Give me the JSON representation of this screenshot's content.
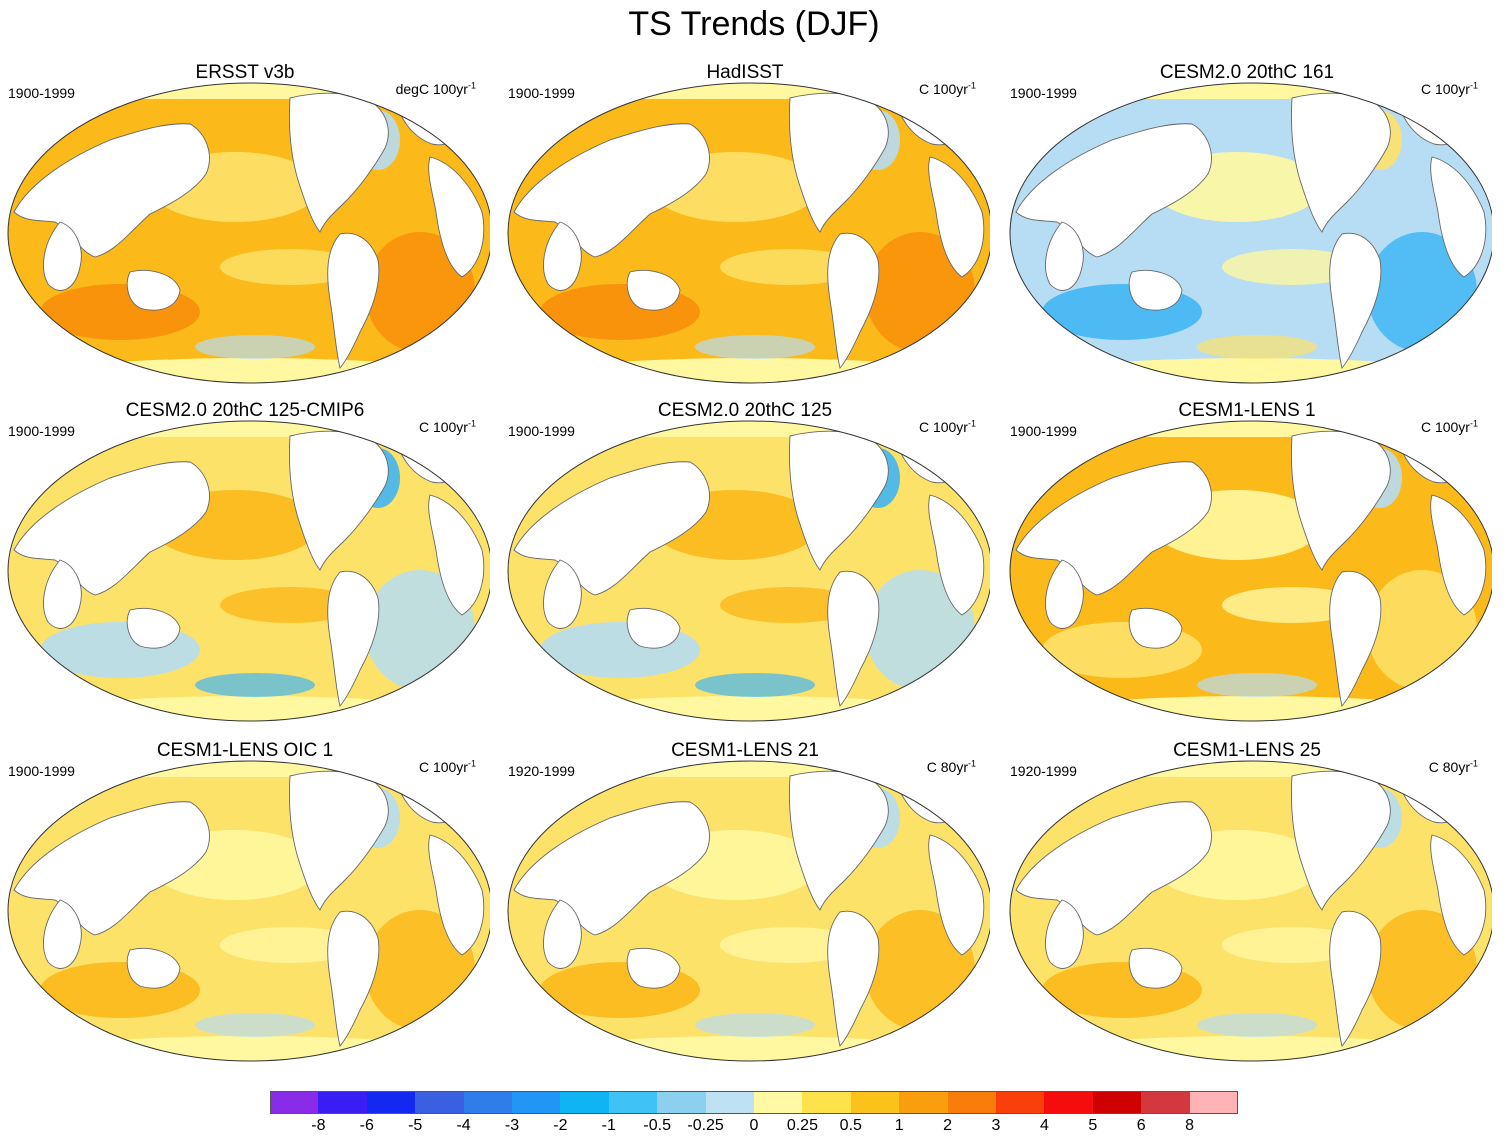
{
  "title": "TS Trends (DJF)",
  "colors": {
    "ocean_warm": "#fbb91a",
    "ocean_warmer": "#f88f0b",
    "ocean_mild": "#fde26a",
    "ocean_light": "#fff8a0",
    "ocean_cool": "#b6ddf3",
    "ocean_cold": "#41b6f3",
    "land": "#ffffff",
    "coast": "#666666"
  },
  "panels": [
    {
      "title": "ERSST v3b",
      "period": "1900-1999",
      "units_base": "degC 100yr",
      "units_exp": "-1",
      "style": "warm"
    },
    {
      "title": "HadISST",
      "period": "1900-1999",
      "units_base": "C 100yr",
      "units_exp": "-1",
      "style": "warm"
    },
    {
      "title": "CESM2.0 20thC 161",
      "period": "1900-1999",
      "units_base": "C 100yr",
      "units_exp": "-1",
      "style": "cool"
    },
    {
      "title": "CESM2.0 20thC 125-CMIP6",
      "period": "1900-1999",
      "units_base": "C 100yr",
      "units_exp": "-1",
      "style": "mixed"
    },
    {
      "title": "CESM2.0 20thC 125",
      "period": "1900-1999",
      "units_base": "C 100yr",
      "units_exp": "-1",
      "style": "mixed"
    },
    {
      "title": "CESM1-LENS 1",
      "period": "1900-1999",
      "units_base": "C 100yr",
      "units_exp": "-1",
      "style": "moderate"
    },
    {
      "title": "CESM1-LENS OIC 1",
      "period": "1900-1999",
      "units_base": "C 100yr",
      "units_exp": "-1",
      "style": "mild"
    },
    {
      "title": "CESM1-LENS 21",
      "period": "1920-1999",
      "units_base": "C 80yr",
      "units_exp": "-1",
      "style": "mild"
    },
    {
      "title": "CESM1-LENS 25",
      "period": "1920-1999",
      "units_base": "C 80yr",
      "units_exp": "-1",
      "style": "mild"
    }
  ],
  "colorbar": {
    "colors": [
      "#8a2be8",
      "#3a1df2",
      "#1328f0",
      "#3a5fe0",
      "#2f7deb",
      "#2196f6",
      "#0fb4f5",
      "#3fc2f5",
      "#8ccfee",
      "#bee2f4",
      "#fff9a6",
      "#fde24a",
      "#fcc21c",
      "#f99f0e",
      "#f87d0a",
      "#fa3f0b",
      "#f50d0d",
      "#cf0000",
      "#d2383e",
      "#ffb3b4"
    ],
    "labels": [
      "-8",
      "-6",
      "-5",
      "-4",
      "-3",
      "-2",
      "-1",
      "-0.5",
      "-0.25",
      "0",
      "0.25",
      "0.5",
      "1",
      "2",
      "3",
      "4",
      "5",
      "6",
      "8"
    ]
  }
}
